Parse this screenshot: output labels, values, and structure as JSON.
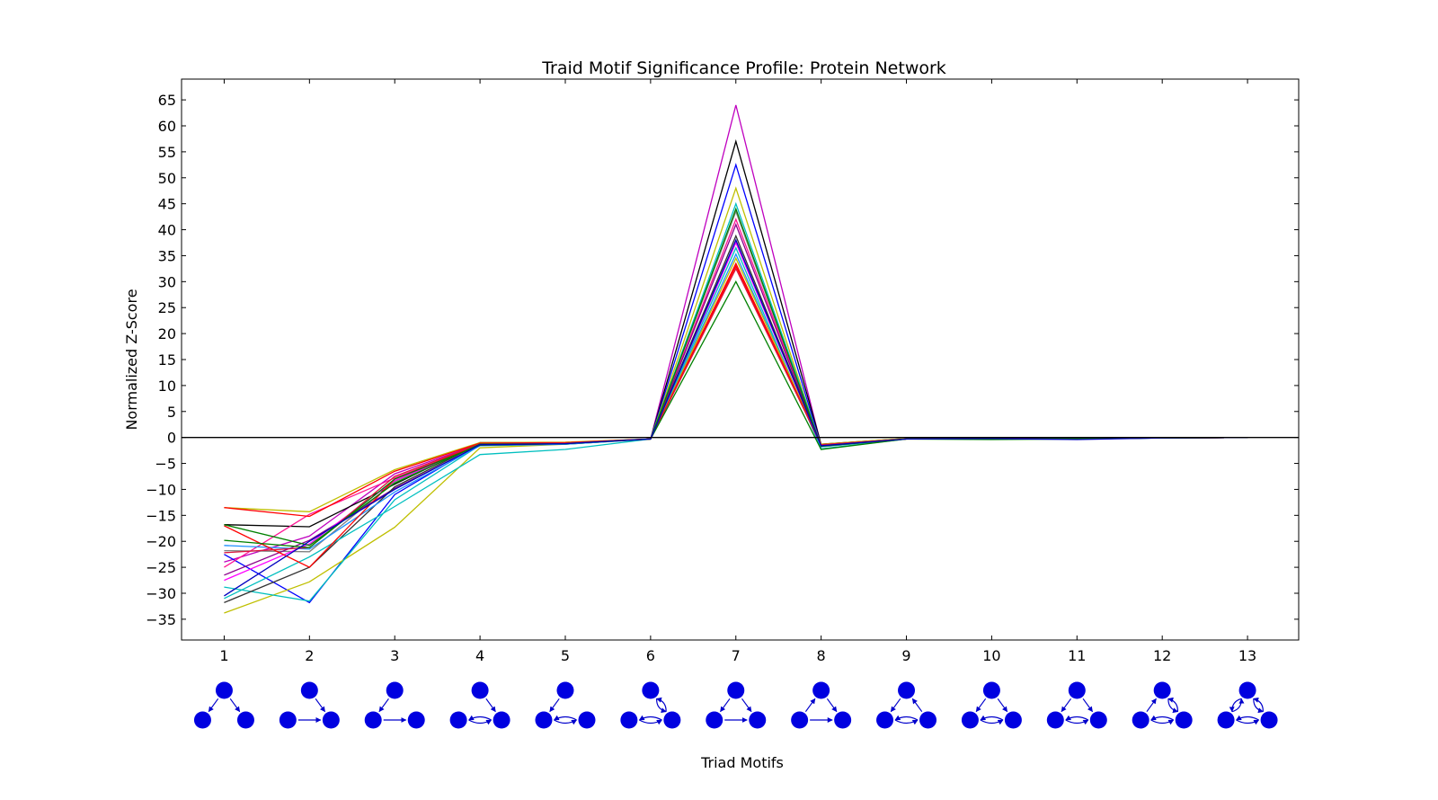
{
  "chart_data": {
    "type": "line",
    "title": "Traid Motif Significance Profile: Protein Network",
    "xlabel": "Triad Motifs",
    "ylabel": "Normalized Z-Score",
    "x": [
      1,
      2,
      3,
      4,
      5,
      6,
      7,
      8,
      9,
      10,
      11,
      12,
      13
    ],
    "x_tick_labels": [
      "1",
      "2",
      "3",
      "4",
      "5",
      "6",
      "7",
      "8",
      "9",
      "10",
      "11",
      "12",
      "13"
    ],
    "xlim": [
      0.5,
      13.6
    ],
    "ylim": [
      -39,
      69
    ],
    "y_ticks": [
      65,
      60,
      55,
      50,
      45,
      40,
      35,
      30,
      25,
      20,
      15,
      10,
      5,
      0,
      -5,
      -10,
      -15,
      -20,
      -25,
      -30,
      -35
    ],
    "y_tick_labels": [
      "65",
      "60",
      "55",
      "50",
      "45",
      "40",
      "35",
      "30",
      "25",
      "20",
      "15",
      "10",
      "5",
      "0",
      "−5",
      "−10",
      "−15",
      "−20",
      "−25",
      "−30",
      "−35"
    ],
    "zero_line": true,
    "grid": false,
    "legend": "none",
    "series": [
      {
        "color": "#bf00bf",
        "values": [
          -24.0,
          -19.0,
          -7.0,
          -1.2,
          -1.0,
          -0.3,
          64.0,
          -1.5,
          -0.3,
          -0.2,
          -0.2,
          -0.1,
          0.0
        ]
      },
      {
        "color": "#000000",
        "values": [
          -16.8,
          -17.2,
          -9.0,
          -1.0,
          -1.0,
          -0.3,
          57.0,
          -1.3,
          -0.2,
          -0.2,
          -0.2,
          -0.1,
          0.0
        ]
      },
      {
        "color": "#0000ff",
        "values": [
          -22.5,
          -31.8,
          -11.0,
          -1.3,
          -1.2,
          -0.3,
          52.5,
          -1.6,
          -0.3,
          -0.2,
          -0.3,
          -0.1,
          0.0
        ]
      },
      {
        "color": "#bfbf00",
        "values": [
          -33.8,
          -27.8,
          -17.3,
          -2.0,
          -1.3,
          -0.3,
          48.0,
          -1.8,
          -0.3,
          -0.3,
          -0.2,
          -0.1,
          0.0
        ]
      },
      {
        "color": "#00bfbf",
        "values": [
          -28.8,
          -31.5,
          -12.0,
          -1.5,
          -1.3,
          -0.3,
          45.0,
          -1.5,
          -0.3,
          -0.2,
          -0.3,
          -0.1,
          0.0
        ]
      },
      {
        "color": "#808080",
        "values": [
          -21.8,
          -22.0,
          -8.5,
          -1.4,
          -1.1,
          -0.3,
          43.5,
          -1.7,
          -0.3,
          -0.3,
          -0.2,
          -0.1,
          0.0
        ]
      },
      {
        "color": "#ff1493",
        "values": [
          -25.0,
          -14.8,
          -7.8,
          -1.3,
          -1.2,
          -0.3,
          42.0,
          -1.4,
          -0.3,
          -0.2,
          -0.2,
          -0.1,
          0.0
        ]
      },
      {
        "color": "#8b008b",
        "values": [
          -26.5,
          -19.8,
          -9.8,
          -1.5,
          -1.2,
          -0.3,
          41.0,
          -1.6,
          -0.3,
          -0.2,
          -0.3,
          -0.1,
          0.0
        ]
      },
      {
        "color": "#333333",
        "values": [
          -31.8,
          -25.0,
          -9.5,
          -1.2,
          -1.1,
          -0.3,
          38.8,
          -1.5,
          -0.3,
          -0.2,
          -0.2,
          -0.1,
          0.0
        ]
      },
      {
        "color": "#ff00ff",
        "values": [
          -27.5,
          -20.5,
          -8.3,
          -1.4,
          -1.2,
          -0.3,
          37.5,
          -1.6,
          -0.3,
          -0.2,
          -0.2,
          -0.1,
          0.0
        ]
      },
      {
        "color": "#00bfbf",
        "values": [
          -31.0,
          -23.0,
          -13.3,
          -3.3,
          -2.3,
          -0.3,
          36.5,
          -2.2,
          -0.3,
          -0.3,
          -0.3,
          -0.1,
          0.0
        ]
      },
      {
        "color": "#1e90ff",
        "values": [
          -20.8,
          -21.5,
          -10.5,
          -1.6,
          -1.3,
          -0.3,
          35.3,
          -1.8,
          -0.3,
          -0.2,
          -0.2,
          -0.1,
          0.0
        ]
      },
      {
        "color": "#bfbf00",
        "values": [
          -13.5,
          -14.3,
          -6.2,
          -1.0,
          -0.9,
          -0.3,
          34.5,
          -1.3,
          -0.2,
          -0.2,
          -0.2,
          -0.1,
          0.0
        ]
      },
      {
        "color": "#ff0000",
        "values": [
          -13.5,
          -15.2,
          -6.5,
          -1.1,
          -1.0,
          -0.3,
          33.5,
          -1.4,
          -0.3,
          -0.2,
          -0.2,
          -0.1,
          0.0
        ]
      },
      {
        "color": "#ff0000",
        "values": [
          -17.0,
          -25.0,
          -8.0,
          -1.3,
          -1.1,
          -0.3,
          33.0,
          -1.5,
          -0.3,
          -0.2,
          -0.2,
          -0.1,
          0.0
        ]
      },
      {
        "color": "#dc143c",
        "values": [
          -22.2,
          -21.2,
          -7.5,
          -1.2,
          -1.1,
          -0.3,
          32.5,
          -1.4,
          -0.3,
          -0.2,
          -0.2,
          -0.1,
          0.0
        ]
      },
      {
        "color": "#008000",
        "values": [
          -19.8,
          -21.2,
          -8.0,
          -1.5,
          -1.2,
          -0.3,
          30.0,
          -2.3,
          -0.3,
          -0.4,
          -0.3,
          -0.1,
          0.0
        ]
      },
      {
        "color": "#008000",
        "values": [
          -16.8,
          -20.8,
          -8.8,
          -1.3,
          -1.2,
          -0.3,
          44.0,
          -1.7,
          -0.3,
          -0.3,
          -0.2,
          -0.1,
          0.0
        ]
      },
      {
        "color": "#0000bf",
        "values": [
          -30.5,
          -20.0,
          -10.0,
          -1.4,
          -1.2,
          -0.3,
          38.0,
          -1.6,
          -0.3,
          -0.2,
          -0.4,
          -0.1,
          0.0
        ]
      }
    ],
    "motif_icons": [
      {
        "motif": 1,
        "arrows": [
          [
            0,
            1
          ],
          [
            0,
            2
          ]
        ]
      },
      {
        "motif": 2,
        "arrows": [
          [
            0,
            2
          ],
          [
            1,
            2
          ]
        ]
      },
      {
        "motif": 3,
        "arrows": [
          [
            0,
            1
          ],
          [
            1,
            2
          ]
        ]
      },
      {
        "motif": 4,
        "arrows": [
          [
            0,
            2
          ],
          [
            2,
            1
          ],
          [
            1,
            2
          ]
        ]
      },
      {
        "motif": 5,
        "arrows": [
          [
            0,
            1
          ],
          [
            1,
            2
          ],
          [
            2,
            1
          ]
        ]
      },
      {
        "motif": 6,
        "arrows": [
          [
            0,
            2
          ],
          [
            2,
            0
          ],
          [
            1,
            2
          ],
          [
            2,
            1
          ]
        ]
      },
      {
        "motif": 7,
        "arrows": [
          [
            0,
            1
          ],
          [
            0,
            2
          ],
          [
            1,
            2
          ]
        ]
      },
      {
        "motif": 8,
        "arrows": [
          [
            1,
            0
          ],
          [
            0,
            2
          ],
          [
            1,
            2
          ]
        ]
      },
      {
        "motif": 9,
        "arrows": [
          [
            0,
            1
          ],
          [
            1,
            2
          ],
          [
            2,
            1
          ],
          [
            2,
            0
          ]
        ]
      },
      {
        "motif": 10,
        "arrows": [
          [
            0,
            1
          ],
          [
            0,
            2
          ],
          [
            1,
            2
          ],
          [
            2,
            1
          ]
        ]
      },
      {
        "motif": 11,
        "arrows": [
          [
            0,
            1
          ],
          [
            0,
            2
          ],
          [
            1,
            2
          ],
          [
            2,
            1
          ]
        ]
      },
      {
        "motif": 12,
        "arrows": [
          [
            1,
            0
          ],
          [
            0,
            2
          ],
          [
            2,
            0
          ],
          [
            1,
            2
          ],
          [
            2,
            1
          ]
        ]
      },
      {
        "motif": 13,
        "arrows": [
          [
            0,
            1
          ],
          [
            1,
            0
          ],
          [
            0,
            2
          ],
          [
            2,
            0
          ],
          [
            1,
            2
          ],
          [
            2,
            1
          ]
        ]
      }
    ]
  }
}
